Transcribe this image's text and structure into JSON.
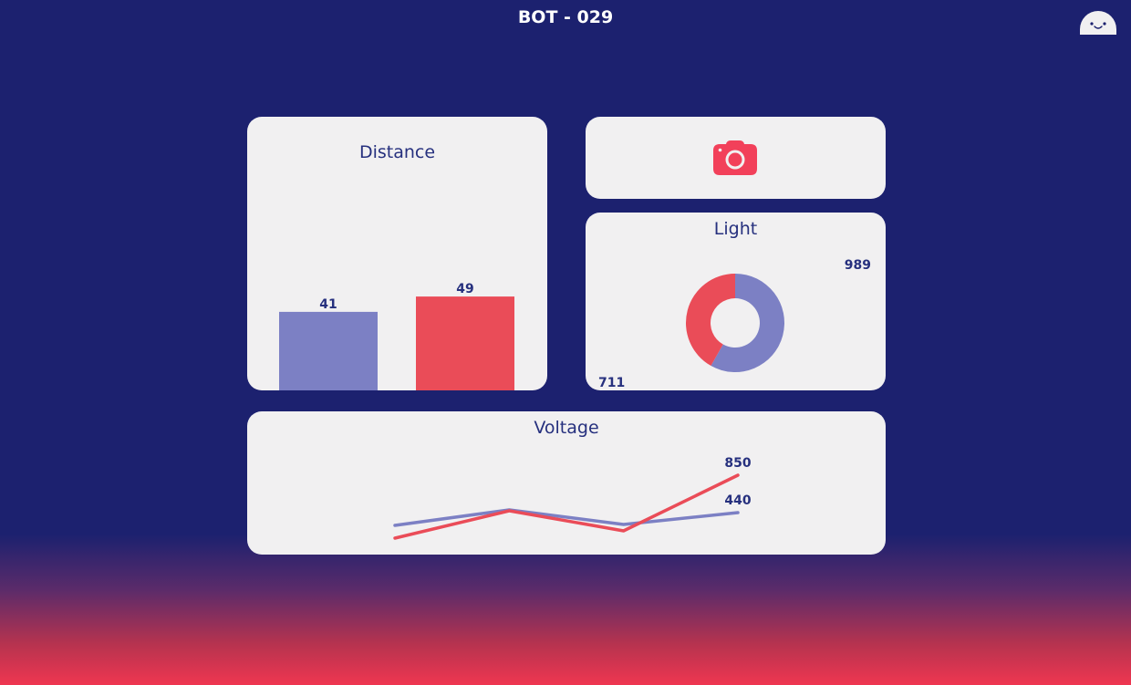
{
  "header": {
    "title": "BOT - 029",
    "avatar_icon": "robot-face-icon"
  },
  "colors": {
    "background_top": "#1c216f",
    "background_bottom": "#ef3650",
    "card": "#f1f0f1",
    "text": "#26307e",
    "series_blue": "#7c80c4",
    "series_red": "#ea4c58",
    "camera": "#f2405a"
  },
  "camera": {
    "icon": "camera-icon"
  },
  "distance": {
    "title": "Distance",
    "chart_data": {
      "type": "bar",
      "categories": [
        "",
        ""
      ],
      "values": [
        41,
        49
      ],
      "title": "Distance",
      "ylim": [
        0,
        100
      ],
      "colors": [
        "#7c80c4",
        "#ea4c58"
      ]
    }
  },
  "light": {
    "title": "Light",
    "chart_data": {
      "type": "pie",
      "style": "donut",
      "values": [
        989,
        711
      ],
      "labels": [
        "989",
        "711"
      ],
      "colors": [
        "#7c80c4",
        "#ea4c58"
      ]
    }
  },
  "voltage": {
    "title": "Voltage",
    "chart_data": {
      "type": "line",
      "x": [
        1,
        2,
        3,
        4
      ],
      "ylim": [
        0,
        1200
      ],
      "series": [
        {
          "values": [
            300,
            470,
            310,
            440
          ],
          "color": "#7c80c4",
          "end_label": "440"
        },
        {
          "values": [
            160,
            460,
            240,
            850
          ],
          "color": "#ea4c58",
          "end_label": "850"
        }
      ]
    }
  }
}
